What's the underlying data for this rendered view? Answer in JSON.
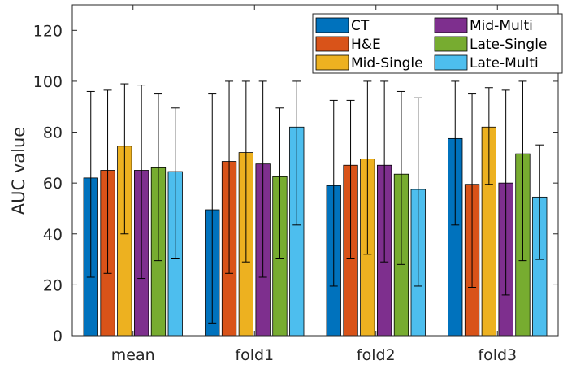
{
  "chart_data": {
    "type": "bar",
    "title": "",
    "xlabel": "",
    "ylabel": "AUC value",
    "ylim": [
      0,
      130
    ],
    "yticks": [
      0,
      20,
      40,
      60,
      80,
      100,
      120
    ],
    "grid": false,
    "legend_position": "top-right",
    "categories": [
      "mean",
      "fold1",
      "fold2",
      "fold3"
    ],
    "series": [
      {
        "name": "CT",
        "color": "#0072BD",
        "values": [
          62,
          49.5,
          59,
          77.5
        ],
        "err_low": [
          23,
          5,
          19.5,
          43.5
        ],
        "err_high": [
          96,
          95,
          92.5,
          100
        ]
      },
      {
        "name": "H&E",
        "color": "#D95319",
        "values": [
          65,
          68.5,
          67,
          59.5
        ],
        "err_low": [
          24.5,
          24.5,
          30.5,
          19
        ],
        "err_high": [
          96.5,
          100,
          92.5,
          95
        ]
      },
      {
        "name": "Mid-Single",
        "color": "#EDB120",
        "values": [
          74.5,
          72,
          69.5,
          82
        ],
        "err_low": [
          40,
          29,
          32,
          59.5
        ],
        "err_high": [
          99,
          100,
          100,
          97.5
        ]
      },
      {
        "name": "Mid-Multi",
        "color": "#7E2F8E",
        "values": [
          65,
          67.5,
          67,
          60
        ],
        "err_low": [
          22.5,
          23,
          29,
          16
        ],
        "err_high": [
          98.5,
          100,
          100,
          96.5
        ]
      },
      {
        "name": "Late-Single",
        "color": "#77AC30",
        "values": [
          66,
          62.5,
          63.5,
          71.5
        ],
        "err_low": [
          29.5,
          30.5,
          28,
          29.5
        ],
        "err_high": [
          95,
          89.5,
          96,
          100
        ]
      },
      {
        "name": "Late-Multi",
        "color": "#4DBEEE",
        "values": [
          64.5,
          82,
          57.5,
          54.5
        ],
        "err_low": [
          30.5,
          43.5,
          19.5,
          30
        ],
        "err_high": [
          89.5,
          100,
          93.5,
          75
        ]
      }
    ]
  }
}
